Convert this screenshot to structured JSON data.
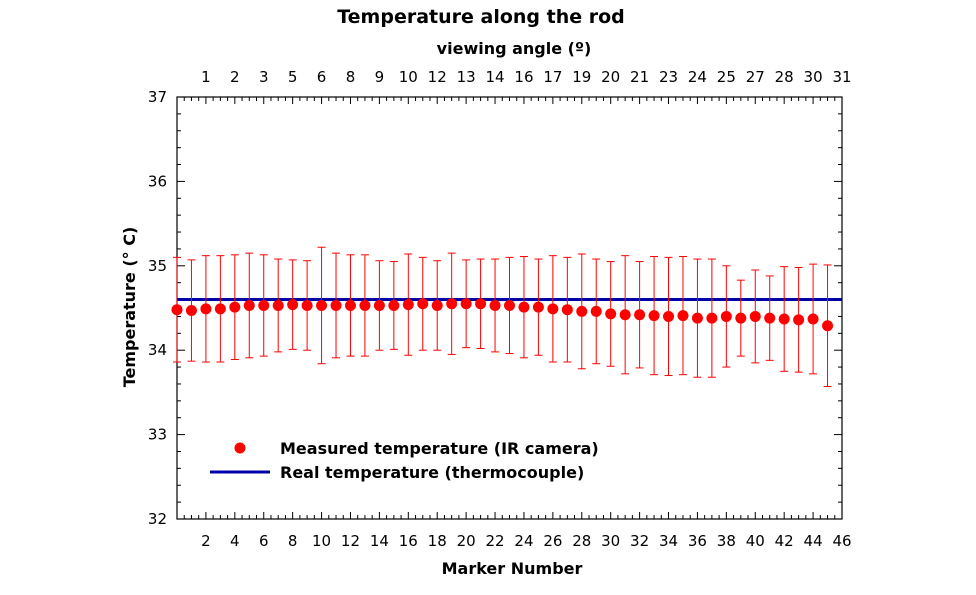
{
  "chart_data": {
    "type": "scatter",
    "title": "Temperature along the rod",
    "xlabel": "Marker Number",
    "ylabel": "Temperature (° C)",
    "x2label": "viewing angle (º)",
    "xlim": [
      0,
      46
    ],
    "ylim": [
      32,
      37
    ],
    "xticks": [
      "2",
      "4",
      "6",
      "8",
      "10",
      "12",
      "14",
      "16",
      "18",
      "20",
      "22",
      "24",
      "26",
      "28",
      "30",
      "32",
      "34",
      "36",
      "38",
      "40",
      "42",
      "44",
      "46"
    ],
    "yticks": [
      "32",
      "33",
      "34",
      "35",
      "36",
      "37"
    ],
    "x2ticks": [
      "1",
      "2",
      "3",
      "5",
      "6",
      "8",
      "9",
      "10",
      "12",
      "13",
      "14",
      "16",
      "17",
      "19",
      "20",
      "21",
      "23",
      "24",
      "25",
      "27",
      "28",
      "30",
      "31"
    ],
    "grid": false,
    "legend_position": "bottom-left",
    "series": [
      {
        "name": "Measured temperature (IR camera)",
        "color": "#ff0000",
        "marker": "circle",
        "x": [
          0,
          1,
          2,
          3,
          4,
          5,
          6,
          7,
          8,
          9,
          10,
          11,
          12,
          13,
          14,
          15,
          16,
          17,
          18,
          19,
          20,
          21,
          22,
          23,
          24,
          25,
          26,
          27,
          28,
          29,
          30,
          31,
          32,
          33,
          34,
          35,
          36,
          37,
          38,
          39,
          40,
          41,
          42,
          43,
          44,
          45
        ],
        "y": [
          34.48,
          34.47,
          34.49,
          34.49,
          34.51,
          34.53,
          34.53,
          34.53,
          34.54,
          34.53,
          34.53,
          34.53,
          34.53,
          34.53,
          34.53,
          34.53,
          34.54,
          34.55,
          34.53,
          34.55,
          34.55,
          34.55,
          34.53,
          34.53,
          34.51,
          34.51,
          34.49,
          34.48,
          34.46,
          34.46,
          34.43,
          34.42,
          34.42,
          34.41,
          34.4,
          34.41,
          34.38,
          34.38,
          34.4,
          34.38,
          34.4,
          34.38,
          34.37,
          34.36,
          34.37,
          34.29
        ],
        "err": [
          0.62,
          0.6,
          0.63,
          0.63,
          0.62,
          0.62,
          0.6,
          0.55,
          0.53,
          0.53,
          0.69,
          0.62,
          0.6,
          0.6,
          0.53,
          0.52,
          0.6,
          0.55,
          0.53,
          0.6,
          0.52,
          0.53,
          0.55,
          0.57,
          0.6,
          0.57,
          0.63,
          0.62,
          0.68,
          0.62,
          0.62,
          0.7,
          0.63,
          0.7,
          0.7,
          0.7,
          0.7,
          0.7,
          0.6,
          0.45,
          0.55,
          0.5,
          0.62,
          0.62,
          0.65,
          0.72
        ]
      },
      {
        "name": "Real temperature (thermocouple)",
        "color": "#0000a8",
        "type": "line",
        "y": 34.6
      }
    ]
  }
}
